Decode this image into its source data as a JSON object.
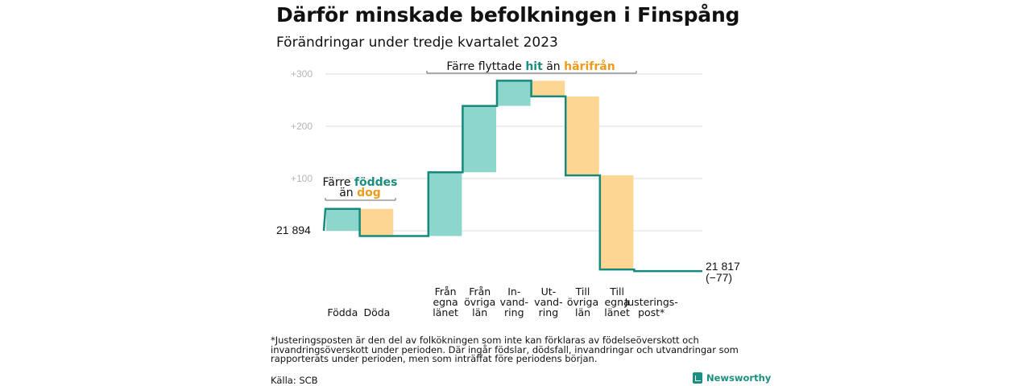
{
  "header": {
    "title": "Därför minskade befolkningen i Finspång",
    "subtitle": "Förändringar under tredje kvartalet 2023"
  },
  "chart_data": {
    "type": "bar",
    "subtype": "waterfall",
    "start_label": "21  894",
    "end_label_value": "21 817",
    "end_label_change": "(−77)",
    "y_ticks": [
      "+300",
      "+200",
      "+100"
    ],
    "y_tick_values": [
      300,
      200,
      100
    ],
    "y_range": [
      -80,
      330
    ],
    "baseline_value": 0,
    "categories": [
      {
        "label": [
          "Födda"
        ],
        "delta": 42
      },
      {
        "label": [
          "Döda"
        ],
        "delta": -52
      },
      {
        "label": [],
        "delta": 0
      },
      {
        "label": [
          "Från",
          "egna",
          "länet"
        ],
        "delta": 122
      },
      {
        "label": [
          "Från",
          "övriga",
          "län"
        ],
        "delta": 127
      },
      {
        "label": [
          "In-",
          "vand-",
          "ring"
        ],
        "delta": 48
      },
      {
        "label": [
          "Ut-",
          "vand-",
          "ring"
        ],
        "delta": -30
      },
      {
        "label": [
          "Till",
          "övriga",
          "län"
        ],
        "delta": -151
      },
      {
        "label": [
          "Till",
          "egna",
          "länet"
        ],
        "delta": -180
      },
      {
        "label": [
          "Justerings-",
          "post*"
        ],
        "delta": -3
      }
    ],
    "annotations": {
      "births": {
        "line1_prefix": "Färre ",
        "line1_highlight": "föddes",
        "line2_prefix": "än ",
        "line2_highlight": "dog"
      },
      "migration": {
        "prefix": "Färre flyttade ",
        "highlight1": "hit",
        "middle": " än ",
        "highlight2": "härifrån"
      }
    },
    "colors": {
      "increase_fill": "#8cd6cb",
      "decrease_fill": "#fcd692",
      "line": "#158a7c",
      "teal_text": "#1a8f7f",
      "orange_text": "#ef9a1c",
      "grid": "#dddddd",
      "tick_text": "#b5b5b5"
    }
  },
  "footnote": "*Justeringsposten är den del av folkökningen som inte kan förklaras av födelseöverskott och invandringsöverskott under perioden. Där ingår födslar, dödsfall, invandringar och utvandringar som rapporterats under perioden, men som inträffat före periodens början.",
  "source": "Källa: SCB",
  "brand": {
    "name": "Newsworthy",
    "icon": "newsworthy-logo-icon"
  }
}
